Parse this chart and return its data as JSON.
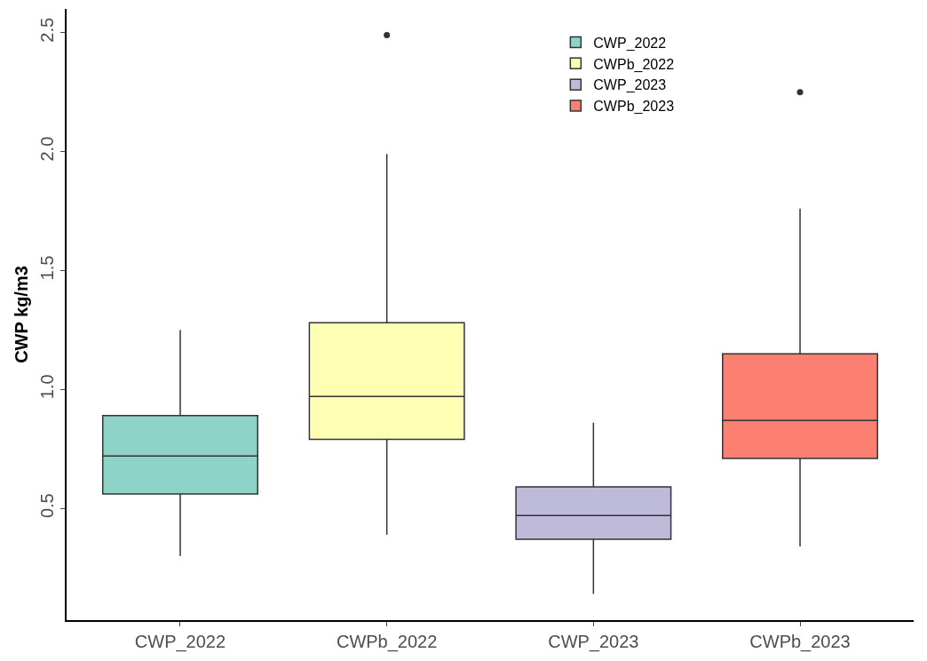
{
  "chart_data": {
    "type": "box",
    "ylabel": "CWP kg/m3",
    "categories": [
      "CWP_2022",
      "CWPb_2022",
      "CWP_2023",
      "CWPb_2023"
    ],
    "series": [
      {
        "name": "CWP_2022",
        "color": "#8dd3c7",
        "boxes": [
          {
            "low": 0.3,
            "q1": 0.56,
            "median": 0.72,
            "q3": 0.89,
            "high": 1.25
          },
          null,
          null,
          null
        ]
      },
      {
        "name": "CWPb_2022",
        "color": "#ffffb3",
        "boxes": [
          null,
          {
            "low": 0.39,
            "q1": 0.79,
            "median": 0.97,
            "q3": 1.28,
            "high": 1.99,
            "outliers": [
              2.49
            ]
          },
          null,
          null
        ]
      },
      {
        "name": "CWP_2023",
        "color": "#bebada",
        "boxes": [
          null,
          null,
          {
            "low": 0.14,
            "q1": 0.37,
            "median": 0.47,
            "q3": 0.59,
            "high": 0.86
          },
          null
        ]
      },
      {
        "name": "CWPb_2023",
        "color": "#fb8072",
        "boxes": [
          null,
          null,
          null,
          {
            "low": 0.34,
            "q1": 0.71,
            "median": 0.87,
            "q3": 1.15,
            "high": 1.76,
            "outliers": [
              2.25
            ]
          }
        ]
      }
    ],
    "ylim": [
      0.03,
      2.6
    ],
    "yticks": [
      0.5,
      {
        "value": 1,
        "label": "1.0"
      },
      1.5,
      {
        "value": 2,
        "label": "2.0"
      },
      2.5
    ],
    "legend": "top right"
  }
}
